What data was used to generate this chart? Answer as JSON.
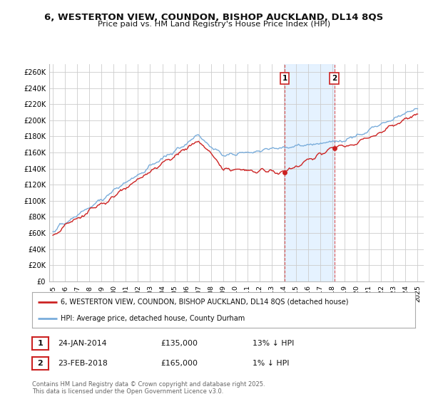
{
  "title": "6, WESTERTON VIEW, COUNDON, BISHOP AUCKLAND, DL14 8QS",
  "subtitle": "Price paid vs. HM Land Registry's House Price Index (HPI)",
  "yticks": [
    0,
    20000,
    40000,
    60000,
    80000,
    100000,
    120000,
    140000,
    160000,
    180000,
    200000,
    220000,
    240000,
    260000
  ],
  "ylim": [
    0,
    270000
  ],
  "background_color": "#ffffff",
  "plot_bg_color": "#ffffff",
  "grid_color": "#cccccc",
  "hpi_color": "#7aaddb",
  "price_color": "#cc2222",
  "highlight_bg": "#ddeeff",
  "legend_entries": [
    "6, WESTERTON VIEW, COUNDON, BISHOP AUCKLAND, DL14 8QS (detached house)",
    "HPI: Average price, detached house, County Durham"
  ],
  "ann1_year": 2014.07,
  "ann1_price": 135000,
  "ann2_year": 2018.15,
  "ann2_price": 165000,
  "ann1_date": "24-JAN-2014",
  "ann1_price_str": "£135,000",
  "ann1_hpi": "13% ↓ HPI",
  "ann2_date": "23-FEB-2018",
  "ann2_price_str": "£165,000",
  "ann2_hpi": "1% ↓ HPI",
  "footer": "Contains HM Land Registry data © Crown copyright and database right 2025.\nThis data is licensed under the Open Government Licence v3.0.",
  "xtick_years": [
    1995,
    1996,
    1997,
    1998,
    1999,
    2000,
    2001,
    2002,
    2003,
    2004,
    2005,
    2006,
    2007,
    2008,
    2009,
    2010,
    2011,
    2012,
    2013,
    2014,
    2015,
    2016,
    2017,
    2018,
    2019,
    2020,
    2021,
    2022,
    2023,
    2024,
    2025
  ]
}
